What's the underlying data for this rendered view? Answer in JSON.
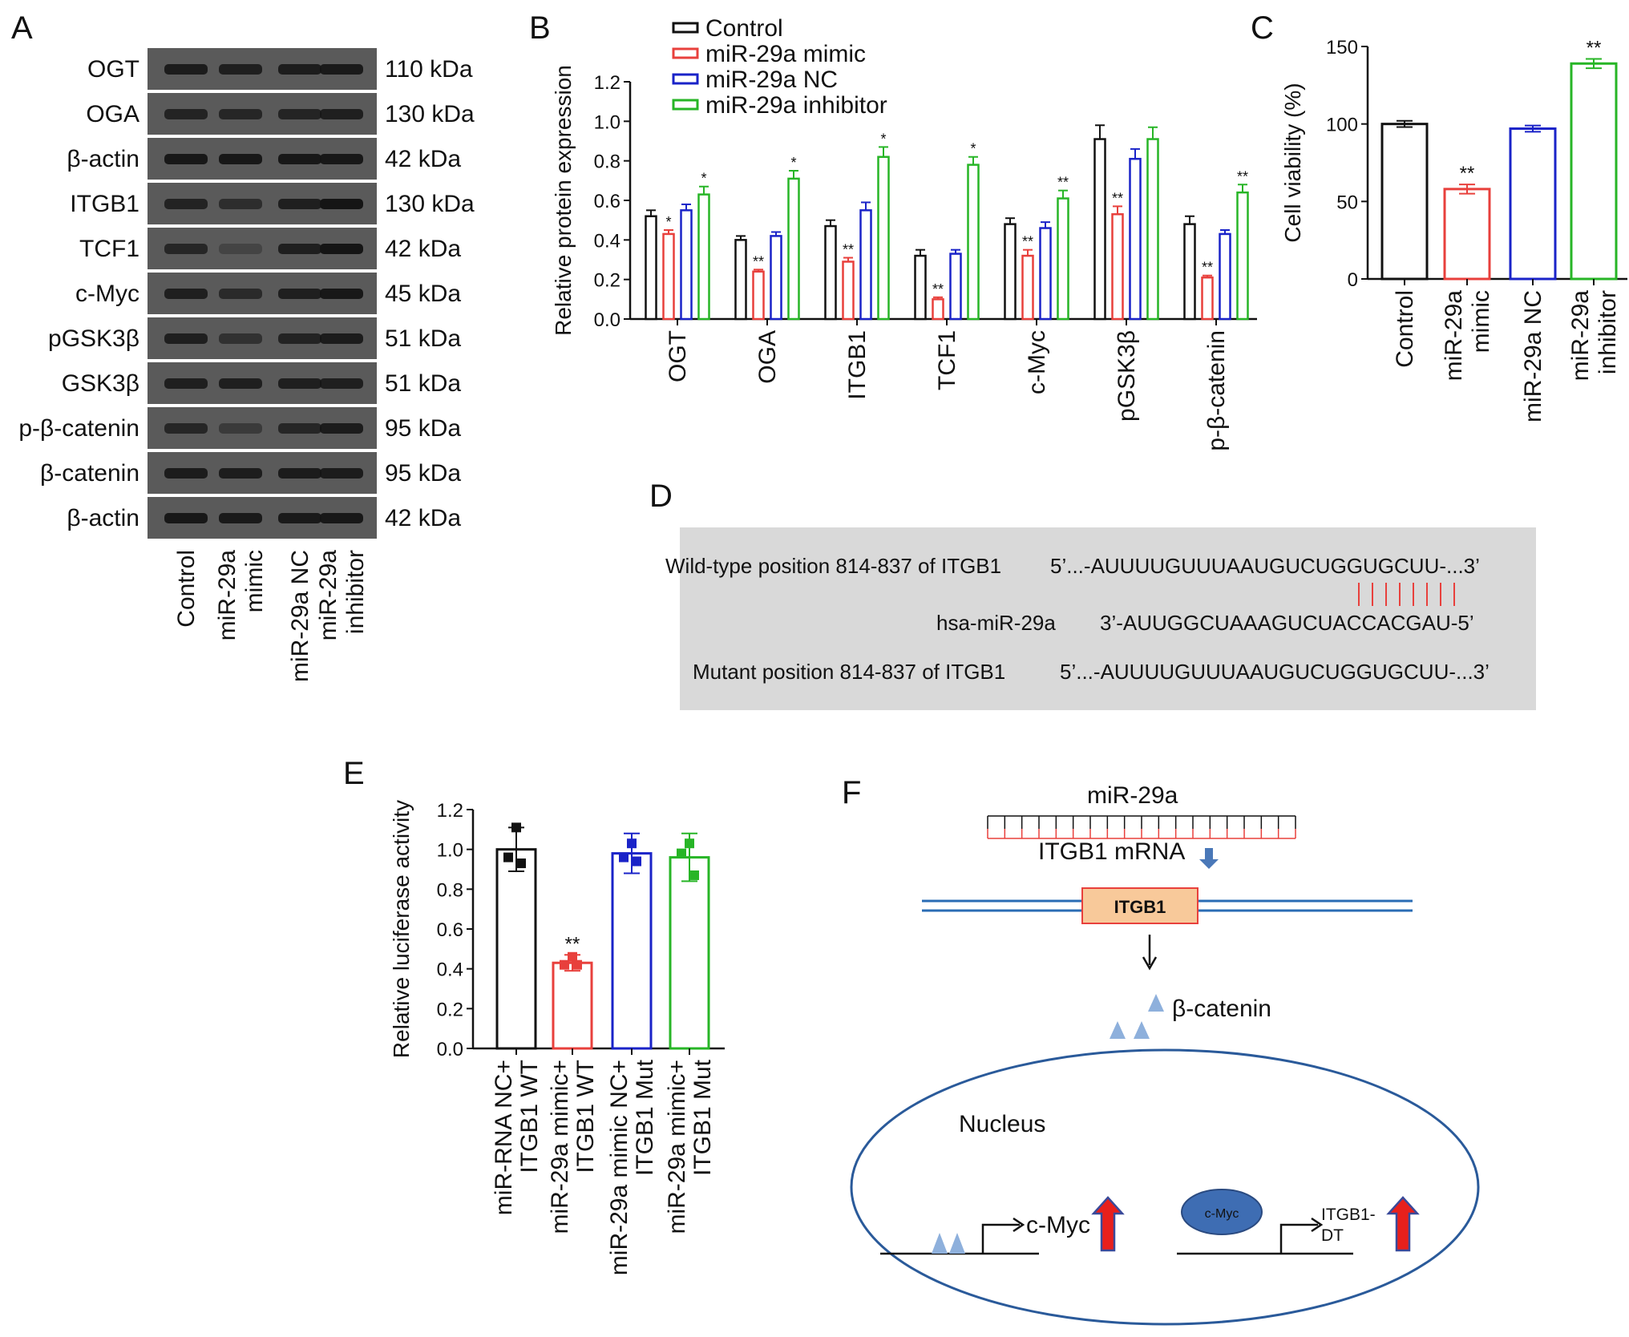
{
  "panels": {
    "a": "A",
    "b": "B",
    "c": "C",
    "d": "D",
    "e": "E",
    "f": "F"
  },
  "western_blot": {
    "rows": [
      {
        "protein": "OGT",
        "kda": "110 kDa",
        "intensity": [
          0.9,
          0.85,
          0.88,
          0.92
        ]
      },
      {
        "protein": "OGA",
        "kda": "130 kDa",
        "intensity": [
          0.8,
          0.75,
          0.78,
          0.85
        ]
      },
      {
        "protein": "β-actin",
        "kda": "42 kDa",
        "intensity": [
          0.95,
          0.95,
          0.95,
          0.95
        ]
      },
      {
        "protein": "ITGB1",
        "kda": "130 kDa",
        "intensity": [
          0.8,
          0.65,
          0.85,
          1.0
        ]
      },
      {
        "protein": "TCF1",
        "kda": "42 kDa",
        "intensity": [
          0.75,
          0.3,
          0.85,
          1.0
        ]
      },
      {
        "protein": "c-Myc",
        "kda": "45 kDa",
        "intensity": [
          0.85,
          0.7,
          0.85,
          0.95
        ]
      },
      {
        "protein": "pGSK3β",
        "kda": "51 kDa",
        "intensity": [
          0.85,
          0.6,
          0.8,
          0.9
        ]
      },
      {
        "protein": "GSK3β",
        "kda": "51 kDa",
        "intensity": [
          0.85,
          0.85,
          0.85,
          0.85
        ]
      },
      {
        "protein": "p-β-catenin",
        "kda": "95 kDa",
        "intensity": [
          0.75,
          0.45,
          0.75,
          0.9
        ]
      },
      {
        "protein": "β-catenin",
        "kda": "95 kDa",
        "intensity": [
          0.9,
          0.88,
          0.9,
          0.9
        ]
      },
      {
        "protein": "β-actin",
        "kda": "42 kDa",
        "intensity": [
          0.95,
          0.92,
          0.93,
          0.95
        ]
      }
    ],
    "lanes": [
      [
        "Control"
      ],
      [
        "miR-29a",
        "mimic"
      ],
      [
        "miR-29a NC"
      ],
      [
        "miR-29a",
        "inhibitor"
      ]
    ]
  },
  "colors": {
    "control": "#111111",
    "mimic": "#e8403c",
    "nc": "#1a23c8",
    "inhibitor": "#27b526"
  },
  "chart_data": [
    {
      "type": "bar",
      "panel": "B",
      "ylabel": "Relative protein expression",
      "ylim": [
        0,
        1.2
      ],
      "yticks": [
        "0.0",
        "0.2",
        "0.4",
        "0.6",
        "0.8",
        "1.0",
        "1.2"
      ],
      "categories": [
        "OGT",
        "OGA",
        "ITGB1",
        "TCF1",
        "c-Myc",
        "pGSK3β",
        "p-β-catenin"
      ],
      "series": [
        {
          "name": "Control",
          "values": [
            0.52,
            0.4,
            0.47,
            0.32,
            0.48,
            0.91,
            0.48
          ],
          "errors": [
            0.03,
            0.02,
            0.03,
            0.03,
            0.03,
            0.07,
            0.04
          ],
          "sig": [
            "",
            "",
            "",
            "",
            "",
            "",
            ""
          ]
        },
        {
          "name": "miR-29a mimic",
          "values": [
            0.43,
            0.24,
            0.29,
            0.1,
            0.32,
            0.53,
            0.21
          ],
          "errors": [
            0.02,
            0.01,
            0.02,
            0.01,
            0.03,
            0.04,
            0.01
          ],
          "sig": [
            "*",
            "**",
            "**",
            "**",
            "**",
            "**",
            "**"
          ]
        },
        {
          "name": "miR-29a NC",
          "values": [
            0.55,
            0.42,
            0.55,
            0.33,
            0.46,
            0.81,
            0.43
          ],
          "errors": [
            0.03,
            0.02,
            0.04,
            0.02,
            0.03,
            0.05,
            0.02
          ],
          "sig": [
            "",
            "",
            "",
            "",
            "",
            "",
            ""
          ]
        },
        {
          "name": "miR-29a inhibitor",
          "values": [
            0.63,
            0.71,
            0.82,
            0.78,
            0.61,
            0.91,
            0.64
          ],
          "errors": [
            0.04,
            0.04,
            0.05,
            0.04,
            0.04,
            0.06,
            0.04
          ],
          "sig": [
            "*",
            "*",
            "*",
            "*",
            "**",
            "",
            "**"
          ]
        }
      ]
    },
    {
      "type": "bar",
      "panel": "C",
      "ylabel": "Cell viability (%)",
      "ylim": [
        0,
        150
      ],
      "yticks": [
        "0",
        "50",
        "100",
        "150"
      ],
      "categories": [
        [
          "Control"
        ],
        [
          "miR-29a",
          "mimic"
        ],
        [
          "miR-29a NC"
        ],
        [
          "miR-29a",
          "inhibitor"
        ]
      ],
      "values": [
        100,
        58,
        97,
        139
      ],
      "errors": [
        2,
        3,
        2,
        3
      ],
      "sig": [
        "",
        "**",
        "",
        "**"
      ]
    },
    {
      "type": "bar",
      "panel": "E",
      "ylabel": "Relative luciferase activity",
      "ylim": [
        0,
        1.2
      ],
      "yticks": [
        "0.0",
        "0.2",
        "0.4",
        "0.6",
        "0.8",
        "1.0",
        "1.2"
      ],
      "categories": [
        [
          "miR-RNA NC+",
          "ITGB1 WT"
        ],
        [
          "miR-29a mimic+",
          "ITGB1 WT"
        ],
        [
          "miR-29a mimic NC+",
          "ITGB1 Mut"
        ],
        [
          "miR-29a mimic+",
          "ITGB1 Mut"
        ]
      ],
      "values": [
        1.0,
        0.43,
        0.98,
        0.96
      ],
      "errors": [
        0.11,
        0.04,
        0.1,
        0.12
      ],
      "points": [
        [
          1.11,
          0.96,
          0.93
        ],
        [
          0.46,
          0.42,
          0.42
        ],
        [
          1.03,
          0.96,
          0.94
        ],
        [
          1.03,
          0.98,
          0.87
        ]
      ],
      "sig": [
        "",
        "**",
        "",
        ""
      ]
    }
  ],
  "panel_d": {
    "wt_label": "Wild-type position 814-837 of  ITGB1",
    "wt_seq": "5’...-AUUUUGUUUAAUGUCUGGUGCUU-...3’",
    "mir_label": "hsa-miR-29a",
    "mir_seq": "3’-AUUGGCUAAAGUCUACCACGAU-5’",
    "mut_label": "Mutant position 814-837 of  ITGB1",
    "mut_seq": "5’...-AUUUUGUUUAAUGUCUGGUGCUU-...3’"
  },
  "panel_f": {
    "mirna": "miR-29a",
    "mrna": "ITGB1 mRNA",
    "gene": "ITGB1",
    "beta_catenin": "β-catenin",
    "nucleus": "Nucleus",
    "cmyc_target": "c-Myc",
    "cmyc_protein": "c-Myc",
    "itgb1dt_line1": "ITGB1-",
    "itgb1dt_line2": "DT"
  }
}
